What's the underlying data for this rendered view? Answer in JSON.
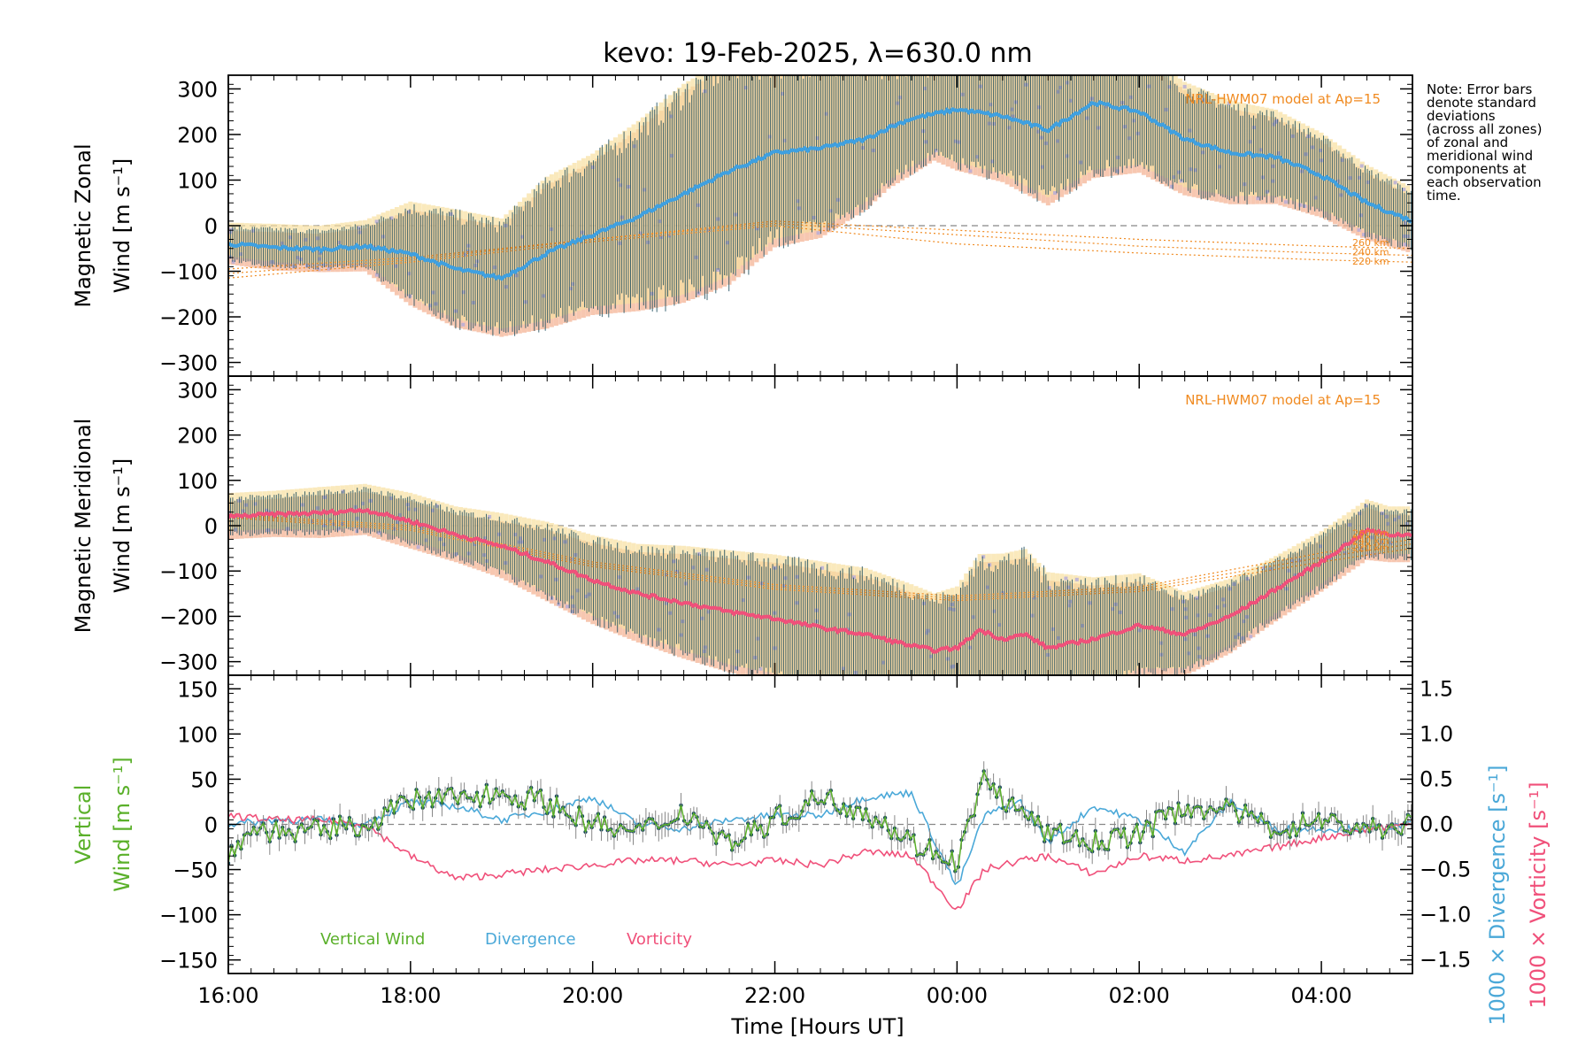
{
  "title": "kevo: 19-Feb-2025, λ=630.0 nm",
  "note_lines": [
    "Note: Error bars",
    "denote standard",
    "deviations",
    "(across all zones)",
    "of zonal and",
    "meridional wind",
    "components at",
    "each observation",
    "time."
  ],
  "colors": {
    "zonal": "#3fa0e0",
    "meridional": "#f0507a",
    "vertical": "#5ab02a",
    "divergence": "#4aa8d8",
    "vorticity": "#f0507a",
    "model": "#f08a20",
    "errorbar": "#1f4f5f",
    "err_orange": "#f4b090",
    "err_yellow": "#f8e0a0",
    "err_lav": "#b4aad8",
    "dash": "#888888"
  },
  "chart_data": [
    {
      "type": "line",
      "id": "zonal",
      "ylabel": [
        "Magnetic Zonal",
        "Wind [m s⁻¹]"
      ],
      "ylim": [
        -330,
        330
      ],
      "yticks": [
        -300,
        -200,
        -100,
        0,
        100,
        200,
        300
      ],
      "xlim": [
        0,
        13.0
      ],
      "model_label": "NRL-HWM07 model at Ap=15",
      "altitude_labels": [
        "260 km",
        "240 km",
        "220 km"
      ],
      "series": [
        {
          "name": "Magnetic Zonal Wind",
          "x": [
            0.0,
            0.5,
            1.0,
            1.5,
            2.0,
            2.5,
            3.0,
            3.5,
            4.0,
            4.5,
            5.0,
            5.5,
            6.0,
            6.5,
            7.0,
            7.25,
            7.5,
            7.75,
            8.0,
            8.5,
            9.0,
            9.5,
            10.0,
            10.5,
            11.0,
            11.5,
            12.0,
            12.5,
            13.0
          ],
          "y": [
            -40,
            -48,
            -52,
            -45,
            -62,
            -95,
            -115,
            -60,
            -20,
            20,
            70,
            120,
            160,
            170,
            190,
            215,
            235,
            245,
            255,
            240,
            210,
            270,
            250,
            190,
            160,
            150,
            110,
            50,
            10
          ],
          "err": [
            35,
            40,
            40,
            45,
            100,
            115,
            115,
            150,
            160,
            190,
            220,
            230,
            190,
            180,
            140,
            120,
            110,
            90,
            120,
            130,
            150,
            150,
            120,
            110,
            100,
            90,
            80,
            70,
            60
          ]
        }
      ],
      "model": [
        {
          "name": "260 km",
          "x": [
            0,
            2,
            4,
            6,
            8,
            10,
            12,
            13
          ],
          "y": [
            -95,
            -70,
            -30,
            10,
            -10,
            -30,
            -45,
            -50
          ]
        },
        {
          "name": "240 km",
          "x": [
            0,
            2,
            4,
            6,
            8,
            10,
            12,
            13
          ],
          "y": [
            -105,
            -75,
            -30,
            5,
            -20,
            -45,
            -60,
            -65
          ]
        },
        {
          "name": "220 km",
          "x": [
            0,
            2,
            4,
            6,
            8,
            10,
            12,
            13
          ],
          "y": [
            -115,
            -80,
            -35,
            0,
            -40,
            -60,
            -75,
            -80
          ]
        }
      ]
    },
    {
      "type": "line",
      "id": "meridional",
      "ylabel": [
        "Magnetic Meridional",
        "Wind [m s⁻¹]"
      ],
      "ylim": [
        -330,
        330
      ],
      "yticks": [
        -300,
        -200,
        -100,
        0,
        100,
        200,
        300
      ],
      "xlim": [
        0,
        13.0
      ],
      "model_label": "NRL-HWM07 model at Ap=15",
      "altitude_labels": [
        "260 km",
        "240 km",
        "220 km"
      ],
      "series": [
        {
          "name": "Magnetic Meridional Wind",
          "x": [
            0.0,
            0.5,
            1.0,
            1.5,
            2.0,
            2.5,
            3.0,
            3.5,
            4.0,
            4.5,
            5.0,
            5.5,
            6.0,
            6.5,
            7.0,
            7.5,
            7.75,
            8.0,
            8.25,
            8.5,
            8.75,
            9.0,
            9.5,
            10.0,
            10.5,
            11.0,
            11.5,
            12.0,
            12.5,
            12.75,
            13.0
          ],
          "y": [
            20,
            25,
            28,
            35,
            10,
            -20,
            -45,
            -80,
            -120,
            -150,
            -170,
            -190,
            -205,
            -225,
            -240,
            -265,
            -275,
            -270,
            -230,
            -250,
            -240,
            -270,
            -250,
            -220,
            -240,
            -200,
            -140,
            -80,
            -10,
            -20,
            -20
          ],
          "err": [
            40,
            40,
            45,
            45,
            50,
            50,
            60,
            75,
            85,
            95,
            110,
            120,
            125,
            130,
            130,
            120,
            110,
            120,
            150,
            170,
            170,
            150,
            120,
            100,
            80,
            70,
            60,
            55,
            55,
            50,
            50
          ]
        }
      ],
      "model": [
        {
          "name": "260 km",
          "x": [
            0,
            2,
            4,
            6,
            8,
            10,
            12,
            13
          ],
          "y": [
            25,
            0,
            -80,
            -130,
            -155,
            -135,
            -60,
            -30
          ]
        },
        {
          "name": "240 km",
          "x": [
            0,
            2,
            4,
            6,
            8,
            10,
            12,
            13
          ],
          "y": [
            22,
            -5,
            -85,
            -135,
            -160,
            -140,
            -70,
            -40
          ]
        },
        {
          "name": "220 km",
          "x": [
            0,
            2,
            4,
            6,
            8,
            10,
            12,
            13
          ],
          "y": [
            18,
            -10,
            -90,
            -140,
            -165,
            -145,
            -80,
            -50
          ]
        }
      ]
    },
    {
      "type": "line",
      "id": "vertical",
      "ylabel": [
        "Vertical",
        "Wind [m s⁻¹]"
      ],
      "ylim": [
        -165,
        165
      ],
      "yticks": [
        -150,
        -100,
        -50,
        0,
        50,
        100,
        150
      ],
      "right_axis": {
        "ylim": [
          -1.65,
          1.65
        ],
        "ticks": [
          -1.5,
          -1.0,
          -0.5,
          0.0,
          0.5,
          1.0,
          1.5
        ],
        "tick_labels": [
          "−1.5",
          "−1.0",
          "−0.5",
          "0.0",
          "0.5",
          "1.0",
          "1.5"
        ],
        "labels": [
          "1000 × Divergence [s⁻¹]",
          "1000 × Vorticity [s⁻¹]"
        ]
      },
      "xlim": [
        0,
        13.0
      ],
      "xticks": [
        0,
        2,
        4,
        6,
        8,
        10,
        12
      ],
      "xtick_labels": [
        "16:00",
        "18:00",
        "20:00",
        "22:00",
        "00:00",
        "02:00",
        "04:00"
      ],
      "xlabel": "Time [Hours UT]",
      "legend": [
        "Vertical Wind",
        "Divergence",
        "Vorticity"
      ],
      "series": [
        {
          "name": "Vertical Wind",
          "x": [
            0,
            0.3,
            0.8,
            1.5,
            2.0,
            2.5,
            3.0,
            3.5,
            4.0,
            4.5,
            5.0,
            5.5,
            6.0,
            6.5,
            7.0,
            7.5,
            8.0,
            8.3,
            8.7,
            9.0,
            9.5,
            10.0,
            10.5,
            11.0,
            11.5,
            12.0,
            12.5,
            13.0
          ],
          "y": [
            -30,
            -5,
            -10,
            0,
            25,
            30,
            35,
            25,
            0,
            -10,
            15,
            -20,
            5,
            30,
            15,
            -20,
            -40,
            50,
            10,
            -10,
            -20,
            -10,
            20,
            15,
            -5,
            5,
            -5,
            0
          ]
        },
        {
          "name": "Divergence",
          "x": [
            0,
            0.5,
            1.0,
            1.5,
            2.0,
            2.5,
            3.0,
            3.5,
            4.0,
            4.5,
            5.0,
            5.5,
            6.0,
            6.5,
            7.0,
            7.5,
            8.0,
            8.3,
            8.7,
            9.0,
            9.5,
            10.0,
            10.5,
            11.0,
            11.5,
            12.0,
            12.5,
            13.0
          ],
          "y": [
            0.0,
            0.05,
            0.05,
            0.0,
            0.25,
            0.2,
            0.05,
            0.15,
            0.3,
            0.0,
            -0.05,
            0.05,
            0.1,
            0.1,
            0.3,
            0.35,
            -0.7,
            0.1,
            0.25,
            -0.2,
            0.2,
            0.05,
            -0.3,
            0.25,
            -0.05,
            -0.05,
            -0.05,
            0.0
          ]
        },
        {
          "name": "Vorticity",
          "x": [
            0,
            0.5,
            1.0,
            1.5,
            2.0,
            2.5,
            3.0,
            3.5,
            4.0,
            4.5,
            5.0,
            5.5,
            6.0,
            6.5,
            7.0,
            7.5,
            8.0,
            8.3,
            8.7,
            9.0,
            9.5,
            10.0,
            10.5,
            11.0,
            11.5,
            12.0,
            12.5,
            13.0
          ],
          "y": [
            0.1,
            0.05,
            0.05,
            0.0,
            -0.35,
            -0.6,
            -0.55,
            -0.5,
            -0.45,
            -0.4,
            -0.4,
            -0.45,
            -0.4,
            -0.45,
            -0.3,
            -0.35,
            -0.95,
            -0.5,
            -0.4,
            -0.35,
            -0.55,
            -0.35,
            -0.4,
            -0.35,
            -0.25,
            -0.15,
            -0.05,
            0.0
          ]
        }
      ]
    }
  ]
}
